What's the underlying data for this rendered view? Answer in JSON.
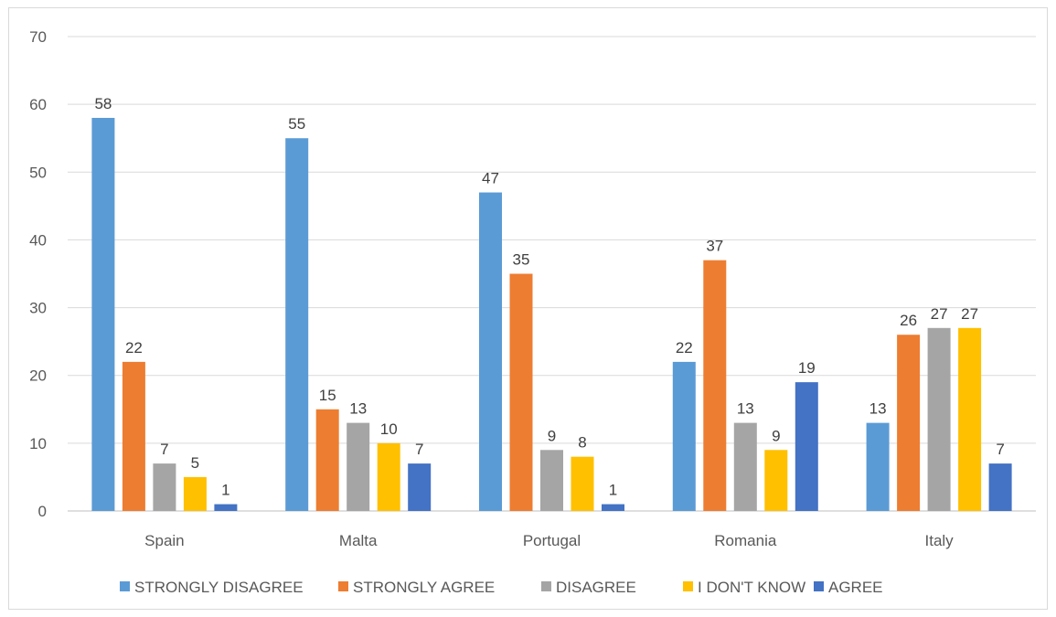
{
  "chart_data": {
    "type": "bar",
    "categories": [
      "Spain",
      "Malta",
      "Portugal",
      "Romania",
      "Italy"
    ],
    "series": [
      {
        "name": "STRONGLY DISAGREE",
        "color": "#5b9bd5",
        "values": [
          58,
          55,
          47,
          22,
          13
        ]
      },
      {
        "name": "STRONGLY AGREE",
        "color": "#ed7d31",
        "values": [
          22,
          15,
          35,
          37,
          26
        ]
      },
      {
        "name": "DISAGREE",
        "color": "#a5a5a5",
        "values": [
          7,
          13,
          9,
          13,
          27
        ]
      },
      {
        "name": "I DON'T KNOW",
        "color": "#ffc000",
        "values": [
          5,
          10,
          8,
          9,
          27
        ]
      },
      {
        "name": "AGREE",
        "color": "#4472c4",
        "values": [
          1,
          7,
          1,
          19,
          7
        ]
      }
    ],
    "yticks": [
      0,
      10,
      20,
      30,
      40,
      50,
      60,
      70
    ],
    "ylim": [
      0,
      70
    ],
    "grid": true,
    "data_labels": true,
    "legend": "bottom"
  }
}
